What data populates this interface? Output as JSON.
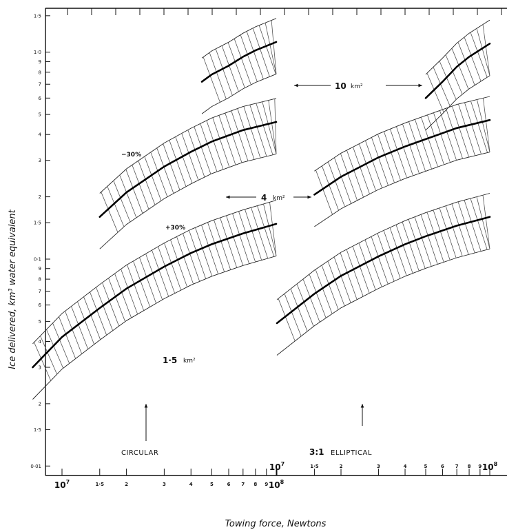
{
  "chart_data": {
    "type": "line",
    "y_scale": "log",
    "x_scale": "log",
    "ylim": [
      0.01,
      2.0
    ],
    "ylabel": "Ice delivered,  km³ water equivalent",
    "xlabel": "Towing force,  Newtons",
    "y_tick_labels": [
      {
        "v": 1.5,
        "t": "1·5"
      },
      {
        "v": 1.0,
        "t": "1·0"
      },
      {
        "v": 0.9,
        "t": "9"
      },
      {
        "v": 0.8,
        "t": "8"
      },
      {
        "v": 0.7,
        "t": "7"
      },
      {
        "v": 0.6,
        "t": "6"
      },
      {
        "v": 0.5,
        "t": "5"
      },
      {
        "v": 0.4,
        "t": "4"
      },
      {
        "v": 0.3,
        "t": "3"
      },
      {
        "v": 0.2,
        "t": "2"
      },
      {
        "v": 0.15,
        "t": "1·5"
      },
      {
        "v": 0.1,
        "t": "0·1"
      },
      {
        "v": 0.09,
        "t": "9"
      },
      {
        "v": 0.08,
        "t": "8"
      },
      {
        "v": 0.07,
        "t": "7"
      },
      {
        "v": 0.06,
        "t": "6"
      },
      {
        "v": 0.05,
        "t": "5"
      },
      {
        "v": 0.04,
        "t": "4"
      },
      {
        "v": 0.03,
        "t": "3"
      },
      {
        "v": 0.02,
        "t": "2"
      },
      {
        "v": 0.015,
        "t": "1·5"
      },
      {
        "v": 0.01,
        "t": "0·01"
      }
    ],
    "x_axis_circular": {
      "range": [
        7000000.0,
        110000000.0
      ],
      "tick_labels": [
        {
          "v": 10000000.0,
          "t": "10",
          "sup": "7"
        },
        {
          "v": 15000000.0,
          "t": "1·5"
        },
        {
          "v": 20000000.0,
          "t": "2"
        },
        {
          "v": 30000000.0,
          "t": "3"
        },
        {
          "v": 40000000.0,
          "t": "4"
        },
        {
          "v": 50000000.0,
          "t": "5"
        },
        {
          "v": 60000000.0,
          "t": "6"
        },
        {
          "v": 70000000.0,
          "t": "7"
        },
        {
          "v": 80000000.0,
          "t": "8"
        },
        {
          "v": 90000000.0,
          "t": "9"
        },
        {
          "v": 100000000.0,
          "t": "10",
          "sup": "8"
        }
      ]
    },
    "x_axis_elliptical": {
      "range": [
        7000000.0,
        110000000.0
      ],
      "tick_labels": [
        {
          "v": 10000000.0,
          "t": "10",
          "sup": "7"
        },
        {
          "v": 15000000.0,
          "t": "1·5"
        },
        {
          "v": 20000000.0,
          "t": "2"
        },
        {
          "v": 30000000.0,
          "t": "3"
        },
        {
          "v": 40000000.0,
          "t": "4"
        },
        {
          "v": 50000000.0,
          "t": "5"
        },
        {
          "v": 60000000.0,
          "t": "6"
        },
        {
          "v": 70000000.0,
          "t": "7"
        },
        {
          "v": 80000000.0,
          "t": "8"
        },
        {
          "v": 90000000.0,
          "t": "9"
        },
        {
          "v": 100000000.0,
          "t": "10",
          "sup": "8"
        }
      ]
    },
    "series": [
      {
        "group": "circular",
        "area": "1.5 km2",
        "x": [
          7300000.0,
          10000000.0,
          15000000.0,
          20000000.0,
          30000000.0,
          40000000.0,
          50000000.0,
          70000000.0,
          100000000.0
        ],
        "y": [
          0.03,
          0.042,
          0.058,
          0.072,
          0.092,
          0.107,
          0.118,
          0.133,
          0.148
        ]
      },
      {
        "group": "circular",
        "area": "4 km2",
        "x": [
          15000000.0,
          20000000.0,
          30000000.0,
          40000000.0,
          50000000.0,
          70000000.0,
          100000000.0
        ],
        "y": [
          0.16,
          0.21,
          0.28,
          0.33,
          0.37,
          0.42,
          0.46
        ]
      },
      {
        "group": "circular",
        "area": "10 km2",
        "x": [
          45000000.0,
          50000000.0,
          60000000.0,
          70000000.0,
          80000000.0,
          100000000.0
        ],
        "y": [
          0.72,
          0.78,
          0.86,
          0.95,
          1.02,
          1.12
        ]
      },
      {
        "group": "elliptical",
        "area": "1.5 km2",
        "x": [
          10000000.0,
          15000000.0,
          20000000.0,
          30000000.0,
          40000000.0,
          50000000.0,
          70000000.0,
          100000000.0
        ],
        "y": [
          0.049,
          0.068,
          0.083,
          0.103,
          0.118,
          0.129,
          0.145,
          0.16
        ]
      },
      {
        "group": "elliptical",
        "area": "4 km2",
        "x": [
          15000000.0,
          20000000.0,
          30000000.0,
          40000000.0,
          50000000.0,
          70000000.0,
          100000000.0
        ],
        "y": [
          0.205,
          0.25,
          0.31,
          0.35,
          0.38,
          0.43,
          0.47
        ]
      },
      {
        "group": "elliptical",
        "area": "10 km2",
        "x": [
          50000000.0,
          60000000.0,
          70000000.0,
          80000000.0,
          100000000.0
        ],
        "y": [
          0.6,
          0.72,
          0.85,
          0.95,
          1.1
        ]
      }
    ],
    "annotations": {
      "minus30": "−30%",
      "plus30": "+30%",
      "area_10": "10",
      "area_4": "4",
      "area_15": "1·5",
      "unit_km2": "km²",
      "circular": "CIRCULAR",
      "ratio": "3:1",
      "elliptical": "ELLIPTICAL"
    }
  }
}
